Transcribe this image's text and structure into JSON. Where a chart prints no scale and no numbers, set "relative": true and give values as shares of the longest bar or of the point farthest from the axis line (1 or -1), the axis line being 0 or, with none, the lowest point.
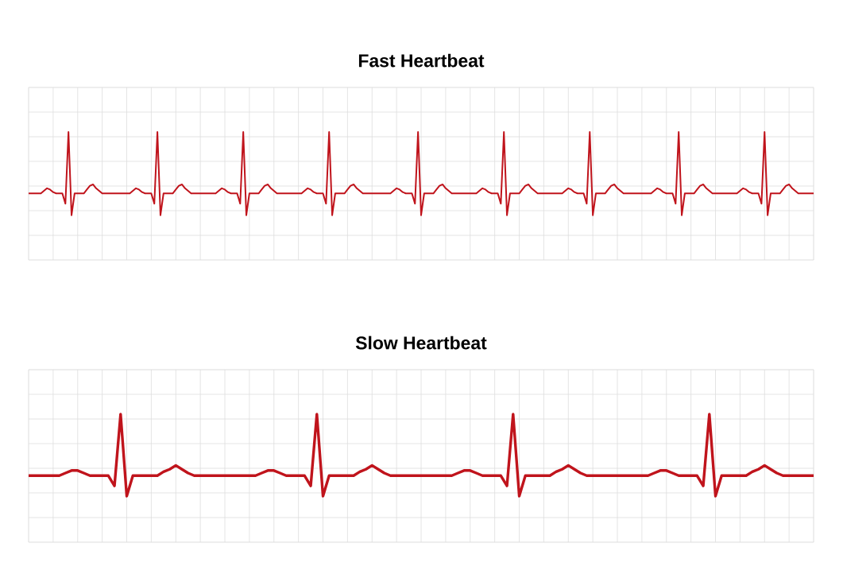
{
  "chart_data": [
    {
      "type": "line",
      "title": "Fast Heartbeat",
      "relative": true,
      "color": "#c0141c",
      "grid": true,
      "categories": [
        null,
        null,
        null,
        null,
        null,
        null,
        null,
        null,
        null,
        null,
        null,
        null,
        null,
        null,
        null,
        null,
        null,
        null,
        null,
        null,
        null,
        null,
        null,
        null,
        null,
        null,
        null,
        null,
        null,
        null,
        null,
        null,
        null,
        null,
        null,
        null,
        null,
        null,
        null,
        null,
        null,
        null,
        null,
        null,
        null,
        null,
        null,
        null,
        null,
        null,
        null,
        null,
        null,
        null,
        null,
        null,
        null,
        null,
        null,
        null,
        null,
        null,
        null,
        null,
        null,
        null,
        null,
        null,
        null,
        null,
        null,
        null,
        null,
        null,
        null,
        null,
        null,
        null,
        null,
        null,
        null,
        null,
        null,
        null,
        null,
        null,
        null,
        null,
        null,
        null,
        null,
        null,
        null,
        null,
        null,
        null,
        null,
        null,
        null,
        null,
        null,
        null,
        null,
        null,
        null,
        null,
        null,
        null,
        null,
        null,
        null,
        null,
        null,
        null,
        null,
        null,
        null,
        null,
        null,
        null,
        null,
        null,
        null,
        null,
        null,
        null,
        null,
        null,
        null,
        null,
        null,
        null,
        null,
        null,
        null,
        null,
        null,
        null,
        null,
        null,
        null,
        null,
        null,
        null,
        null,
        null,
        null,
        null,
        null,
        null,
        null,
        null,
        null,
        null,
        null,
        null,
        null,
        null,
        null,
        null,
        null,
        null,
        null,
        null,
        null,
        null,
        null,
        null,
        null,
        null,
        null,
        null,
        null,
        null,
        null,
        null,
        null,
        null,
        null,
        null,
        null,
        null,
        null,
        null,
        null,
        null,
        null,
        null,
        null,
        null,
        null,
        null,
        null,
        null,
        null,
        null,
        null,
        null,
        null,
        null,
        null,
        null,
        null,
        null,
        null,
        null,
        null,
        null,
        null,
        null,
        null,
        null,
        null,
        null,
        null,
        null,
        null,
        null,
        null,
        null,
        null,
        null,
        null,
        null,
        null,
        null,
        null,
        null,
        null,
        null,
        null,
        null,
        null,
        null,
        null,
        null,
        null,
        null,
        null,
        null,
        null,
        null,
        null,
        null,
        null,
        null,
        null,
        null,
        null,
        null,
        null,
        null,
        null,
        null,
        null,
        null,
        null
      ],
      "values": [
        0.52,
        0.52,
        0.52,
        0.52,
        0.52,
        0.54,
        0.56,
        0.55,
        0.53,
        0.52,
        0.52,
        0.52,
        0.44,
        1,
        0.35,
        0.52,
        0.52,
        0.52,
        0.52,
        0.55,
        0.58,
        0.59,
        0.56,
        0.54,
        0.52,
        0.52,
        0.52,
        0.52,
        0.52,
        0.52,
        0.52,
        0.52,
        0.52,
        0.52,
        0.54,
        0.56,
        0.55,
        0.53,
        0.52,
        0.52,
        0.52,
        0.44,
        1,
        0.35,
        0.52,
        0.52,
        0.52,
        0.52,
        0.55,
        0.58,
        0.59,
        0.56,
        0.54,
        0.52,
        0.52,
        0.52,
        0.52,
        0.52,
        0.52,
        0.52,
        0.52,
        0.52,
        0.54,
        0.56,
        0.55,
        0.53,
        0.52,
        0.52,
        0.52,
        0.44,
        1,
        0.35,
        0.52,
        0.52,
        0.52,
        0.52,
        0.55,
        0.58,
        0.59,
        0.56,
        0.54,
        0.52,
        0.52,
        0.52,
        0.52,
        0.52,
        0.52,
        0.52,
        0.52,
        0.52,
        0.54,
        0.56,
        0.55,
        0.53,
        0.52,
        0.52,
        0.52,
        0.44,
        1,
        0.35,
        0.52,
        0.52,
        0.52,
        0.52,
        0.55,
        0.58,
        0.59,
        0.56,
        0.54,
        0.52,
        0.52,
        0.52,
        0.52,
        0.52,
        0.52,
        0.52,
        0.52,
        0.52,
        0.52,
        0.54,
        0.56,
        0.55,
        0.53,
        0.52,
        0.52,
        0.52,
        0.44,
        1,
        0.35,
        0.52,
        0.52,
        0.52,
        0.52,
        0.55,
        0.58,
        0.59,
        0.56,
        0.54,
        0.52,
        0.52,
        0.52,
        0.52,
        0.52,
        0.52,
        0.52,
        0.52,
        0.52,
        0.54,
        0.56,
        0.55,
        0.53,
        0.52,
        0.52,
        0.52,
        0.44,
        1,
        0.35,
        0.52,
        0.52,
        0.52,
        0.52,
        0.55,
        0.58,
        0.59,
        0.56,
        0.54,
        0.52,
        0.52,
        0.52,
        0.52,
        0.52,
        0.52,
        0.52,
        0.52,
        0.52,
        0.54,
        0.56,
        0.55,
        0.53,
        0.52,
        0.52,
        0.52,
        0.44,
        1,
        0.35,
        0.52,
        0.52,
        0.52,
        0.52,
        0.55,
        0.58,
        0.59,
        0.56,
        0.54,
        0.52,
        0.52,
        0.52,
        0.52,
        0.52,
        0.52,
        0.52,
        0.52,
        0.52,
        0.52,
        0.54,
        0.56,
        0.55,
        0.53,
        0.52,
        0.52,
        0.52,
        0.44,
        1,
        0.35,
        0.52,
        0.52,
        0.52,
        0.52,
        0.55,
        0.58,
        0.59,
        0.56,
        0.54,
        0.52,
        0.52,
        0.52,
        0.52,
        0.52,
        0.52,
        0.52,
        0.52,
        0.52,
        0.54,
        0.56,
        0.55,
        0.53,
        0.52,
        0.52,
        0.52,
        0.44,
        1,
        0.35,
        0.52,
        0.52,
        0.52,
        0.52,
        0.55,
        0.58,
        0.59,
        0.56,
        0.54,
        0.52,
        0.52,
        0.52,
        0.52,
        0.52,
        0.52
      ]
    },
    {
      "type": "line",
      "title": "Slow Heartbeat",
      "relative": true,
      "color": "#c0141c",
      "grid": true,
      "categories": [
        null,
        null,
        null,
        null,
        null,
        null,
        null,
        null,
        null,
        null,
        null,
        null,
        null,
        null,
        null,
        null,
        null,
        null,
        null,
        null,
        null,
        null,
        null,
        null,
        null,
        null,
        null,
        null,
        null,
        null,
        null,
        null,
        null,
        null,
        null,
        null,
        null,
        null,
        null,
        null,
        null,
        null,
        null,
        null,
        null,
        null,
        null,
        null,
        null,
        null,
        null,
        null,
        null,
        null,
        null,
        null,
        null,
        null,
        null,
        null,
        null,
        null,
        null,
        null,
        null,
        null,
        null,
        null,
        null,
        null,
        null,
        null,
        null,
        null,
        null,
        null,
        null,
        null,
        null,
        null,
        null,
        null,
        null,
        null,
        null,
        null,
        null,
        null,
        null,
        null,
        null,
        null,
        null,
        null,
        null,
        null,
        null,
        null,
        null,
        null,
        null,
        null,
        null,
        null,
        null,
        null,
        null,
        null,
        null,
        null,
        null,
        null,
        null,
        null,
        null,
        null,
        null,
        null,
        null,
        null,
        null,
        null,
        null,
        null,
        null,
        null,
        null,
        null,
        null
      ],
      "values": [
        0.52,
        0.52,
        0.52,
        0.52,
        0.52,
        0.52,
        0.54,
        0.56,
        0.56,
        0.54,
        0.52,
        0.52,
        0.52,
        0.52,
        0.44,
        1,
        0.36,
        0.52,
        0.52,
        0.52,
        0.52,
        0.52,
        0.55,
        0.57,
        0.6,
        0.57,
        0.54,
        0.52,
        0.52,
        0.52,
        0.52,
        0.52,
        0.52,
        0.52,
        0.52,
        0.52,
        0.52,
        0.52,
        0.54,
        0.56,
        0.56,
        0.54,
        0.52,
        0.52,
        0.52,
        0.52,
        0.44,
        1,
        0.36,
        0.52,
        0.52,
        0.52,
        0.52,
        0.52,
        0.55,
        0.57,
        0.6,
        0.57,
        0.54,
        0.52,
        0.52,
        0.52,
        0.52,
        0.52,
        0.52,
        0.52,
        0.52,
        0.52,
        0.52,
        0.52,
        0.54,
        0.56,
        0.56,
        0.54,
        0.52,
        0.52,
        0.52,
        0.52,
        0.44,
        1,
        0.36,
        0.52,
        0.52,
        0.52,
        0.52,
        0.52,
        0.55,
        0.57,
        0.6,
        0.57,
        0.54,
        0.52,
        0.52,
        0.52,
        0.52,
        0.52,
        0.52,
        0.52,
        0.52,
        0.52,
        0.52,
        0.52,
        0.54,
        0.56,
        0.56,
        0.54,
        0.52,
        0.52,
        0.52,
        0.52,
        0.44,
        1,
        0.36,
        0.52,
        0.52,
        0.52,
        0.52,
        0.52,
        0.55,
        0.57,
        0.6,
        0.57,
        0.54,
        0.52,
        0.52,
        0.52,
        0.52,
        0.52,
        0.52
      ]
    }
  ]
}
